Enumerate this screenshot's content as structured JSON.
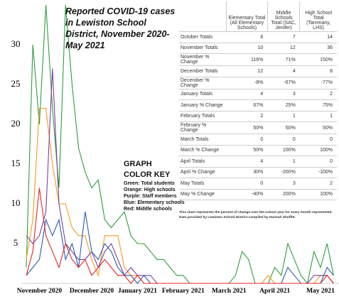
{
  "chart_data": {
    "type": "line",
    "title": "Reported COVID-19 cases in Lewiston School District, November 2020-May 2021",
    "categories": [
      null,
      null,
      "November 2020",
      null,
      null,
      null,
      null,
      null,
      null,
      null,
      "December 2020",
      null,
      null,
      null,
      null,
      null,
      null,
      "January 2021",
      null,
      null,
      null,
      null,
      null,
      null,
      "February 2021",
      null,
      null,
      null,
      null,
      null,
      null,
      "March 2021",
      null,
      null,
      null,
      null,
      null,
      null,
      "April 2021",
      null,
      null,
      null,
      null,
      null,
      null,
      "May 2021",
      null,
      null
    ],
    "series": [
      {
        "name": "Green: Total students",
        "color": "#2e9e3a",
        "values": [
          2,
          30,
          20,
          35,
          22,
          12,
          35,
          25,
          17,
          14,
          12,
          13,
          8,
          7,
          8,
          9,
          6,
          5,
          5,
          4,
          3,
          3,
          2,
          1,
          1,
          0,
          0,
          0,
          0,
          0,
          0,
          0,
          1,
          4,
          3,
          0,
          0,
          0,
          2,
          1,
          5,
          3,
          1,
          0,
          4,
          2,
          5,
          1
        ]
      },
      {
        "name": "Orange: High schools",
        "color": "#f59a1e",
        "values": [
          3,
          8,
          22,
          22,
          15,
          10,
          10,
          7,
          6,
          6,
          3,
          1,
          6,
          6,
          6,
          2,
          1,
          1,
          0,
          0,
          0,
          0,
          0,
          0,
          0,
          0,
          0,
          0,
          0,
          0,
          0,
          0,
          0,
          0,
          0,
          0,
          0,
          1,
          0,
          0,
          0,
          0,
          0,
          0,
          0,
          1,
          1,
          0
        ]
      },
      {
        "name": "Purple: Staff members",
        "color": "#7b3fa0",
        "values": [
          6,
          5,
          6,
          9,
          27,
          10,
          5,
          4,
          3,
          3,
          4,
          2,
          4,
          5,
          3,
          1,
          2,
          1,
          1,
          1,
          0,
          0,
          0,
          0,
          0,
          0,
          0,
          0,
          0,
          0,
          0,
          0,
          0,
          0,
          0,
          0,
          0,
          0,
          0,
          0,
          0,
          0,
          0,
          0,
          1,
          1,
          1,
          0
        ]
      },
      {
        "name": "Blue: Elementary schools",
        "color": "#2a5db0",
        "values": [
          1,
          2,
          3,
          8,
          6,
          8,
          3,
          5,
          2,
          9,
          4,
          3,
          5,
          4,
          2,
          1,
          1,
          0,
          1,
          0,
          0,
          0,
          0,
          0,
          0,
          0,
          0,
          0,
          0,
          0,
          0,
          0,
          0,
          0,
          0,
          0,
          0,
          0,
          0,
          0,
          2,
          1,
          0,
          0,
          0,
          0,
          2,
          1
        ]
      },
      {
        "name": "Red: Middle schools",
        "color": "#e0262a",
        "values": [
          1,
          4,
          12,
          6,
          4,
          2,
          5,
          3,
          2,
          3,
          1,
          2,
          3,
          2,
          1,
          1,
          0,
          1,
          0,
          0,
          0,
          0,
          0,
          0,
          0,
          0,
          0,
          0,
          0,
          0,
          0,
          0,
          0,
          0,
          0,
          0,
          0,
          0,
          0,
          0,
          0,
          0,
          0,
          0,
          0,
          0,
          1,
          0
        ]
      }
    ],
    "ylim": [
      0,
      35
    ],
    "yticks": [
      5,
      10,
      15,
      20,
      25,
      30
    ],
    "grid": false,
    "legend_title": "GRAPH COLOR KEY"
  },
  "table": {
    "header": [
      "Elementary Total (All Elementary Schools)",
      "Middle Schools Total (SAC, Jenifer)",
      "High School Total (Tammany, LHS)"
    ],
    "rows": [
      [
        "October Totals",
        "6",
        "7",
        "14"
      ],
      [
        "November Totals",
        "10",
        "12",
        "36"
      ],
      [
        "November % Change",
        "116%",
        "71%",
        "150%"
      ],
      [
        "December Totals",
        "12",
        "4",
        "8"
      ],
      [
        "December % Change",
        "-8%",
        "-67%",
        "-77%"
      ],
      [
        "January Totals",
        "4",
        "3",
        "2"
      ],
      [
        "January % Change",
        "67%",
        "25%",
        "75%"
      ],
      [
        "February Totals",
        "2",
        "1",
        "1"
      ],
      [
        "February % Change",
        "50%",
        "50%",
        "50%"
      ],
      [
        "March Totals",
        "0",
        "0",
        "0"
      ],
      [
        "March % Change",
        "50%",
        "100%",
        "100%"
      ],
      [
        "April Totals",
        "4",
        "1",
        "0"
      ],
      [
        "April % Change",
        "30%",
        "-200%",
        "-100%"
      ],
      [
        "May Totals",
        "0",
        "3",
        "2"
      ],
      [
        "May % Change",
        "-40%",
        "200%",
        "100%"
      ]
    ],
    "note": "This chart represents the percent of change over the school year for every month represented. Data provided by Lewiston School District compiled by Hannah Shoffitt."
  }
}
